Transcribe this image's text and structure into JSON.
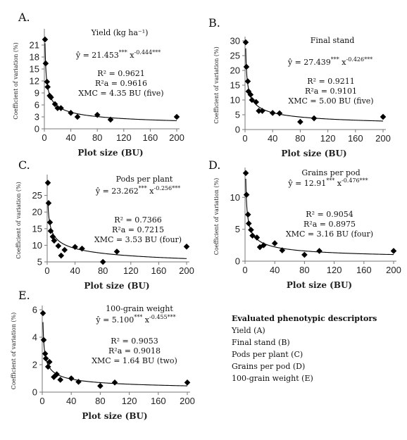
{
  "legend": {
    "title": "Evaluated phenotypic descriptors",
    "items": [
      "Yield (A)",
      "Final stand (B)",
      "Pods per plant (C)",
      "Grains per pod (D)",
      "100-grain weight (E)"
    ]
  },
  "chart_data": [
    {
      "type": "scatter",
      "panel": "A.",
      "title": "Yield (kg ha⁻¹)",
      "equation": "ŷ = 21.453*** x⁻⁰·⁴⁴⁴***",
      "eq_coef": "21.453",
      "eq_coef_sup": "***",
      "eq_exp": "-0.444***",
      "r2": "R² = 0.9621",
      "r2a": "R²a = 0.9616",
      "xmc": "XMC = 4.35 BU (five)",
      "xlabel": "Plot size (BU)",
      "ylabel": "Coefficient of variation (%)",
      "xlim": [
        0,
        200
      ],
      "ylim": [
        0,
        24
      ],
      "xticks": [
        0,
        40,
        80,
        120,
        160,
        200
      ],
      "yticks": [
        0,
        3,
        6,
        9,
        12,
        15,
        18,
        21
      ],
      "fit": {
        "a": 21.453,
        "b": -0.444
      },
      "x": [
        1,
        2,
        4,
        5,
        8,
        10,
        16,
        20,
        25,
        40,
        50,
        80,
        100,
        200
      ],
      "y": [
        22.4,
        16.4,
        11.8,
        10.5,
        8.3,
        7.9,
        6.2,
        5.2,
        5.2,
        4.0,
        3.0,
        3.5,
        2.3,
        3.0
      ]
    },
    {
      "type": "scatter",
      "panel": "B.",
      "title": "Final stand",
      "eq_coef": "27.439",
      "eq_coef_sup": "***",
      "eq_exp": "-0.426***",
      "r2": "R² = 0.9211",
      "r2a": "R²a = 0.9101",
      "xmc": "XMC = 5.00 BU (five)",
      "xlabel": "Plot size (BU)",
      "ylabel": "Coefficient of variation (%)",
      "xlim": [
        0,
        200
      ],
      "ylim": [
        0,
        30
      ],
      "xticks": [
        0,
        40,
        80,
        120,
        160,
        200
      ],
      "yticks": [
        0,
        5,
        10,
        15,
        20,
        25,
        30
      ],
      "fit": {
        "a": 27.439,
        "b": -0.426
      },
      "x": [
        1,
        2,
        4,
        5,
        8,
        10,
        16,
        20,
        25,
        40,
        50,
        80,
        100,
        200
      ],
      "y": [
        29.5,
        21.2,
        16.3,
        12.9,
        11.8,
        10.0,
        9.3,
        6.3,
        6.3,
        5.6,
        5.5,
        2.6,
        3.8,
        4.3
      ]
    },
    {
      "type": "scatter",
      "panel": "C.",
      "title": "Pods per plant",
      "eq_coef": "23.262",
      "eq_coef_sup": "***",
      "eq_exp": "-0.256***",
      "r2": "R² = 0.7366",
      "r2a": "R²a = 0.7215",
      "xmc": "XMC = 3.53 BU (four)",
      "xlabel": "Plot size (BU)",
      "ylabel": "Coefficient of variation (%)",
      "xlim": [
        0,
        200
      ],
      "ylim": [
        5,
        30
      ],
      "xticks": [
        0,
        40,
        80,
        120,
        160,
        200
      ],
      "yticks": [
        5,
        10,
        15,
        20,
        25
      ],
      "fit": {
        "a": 23.262,
        "b": -0.256
      },
      "x": [
        1,
        2,
        4,
        5,
        8,
        10,
        16,
        20,
        25,
        40,
        50,
        80,
        100,
        200
      ],
      "y": [
        28.8,
        22.7,
        16.9,
        14.3,
        12.6,
        11.4,
        9.8,
        6.9,
        8.6,
        9.5,
        9.0,
        5.0,
        8.1,
        9.6
      ]
    },
    {
      "type": "scatter",
      "panel": "D.",
      "title": "Grains per pod",
      "eq_coef": "12.91",
      "eq_coef_sup": "***",
      "eq_exp": "-0.476***",
      "r2": "R² = 0.9054",
      "r2a": "R²a = 0.8975",
      "xmc": "XMC = 3.16 BU (four)",
      "xlabel": "Plot size (BU)",
      "ylabel": "Coefficient of variation (%)",
      "xlim": [
        0,
        200
      ],
      "ylim": [
        0,
        14
      ],
      "xticks": [
        0,
        40,
        80,
        120,
        160,
        200
      ],
      "yticks": [
        0,
        5,
        10
      ],
      "fit": {
        "a": 12.91,
        "b": -0.476
      },
      "x": [
        1,
        2,
        4,
        5,
        8,
        10,
        16,
        20,
        25,
        40,
        50,
        80,
        100,
        200
      ],
      "y": [
        13.8,
        10.4,
        7.3,
        5.9,
        4.9,
        4.0,
        3.7,
        2.2,
        2.5,
        2.8,
        1.7,
        1.0,
        1.6,
        1.6
      ]
    },
    {
      "type": "scatter",
      "panel": "E.",
      "title": "100-grain weight",
      "eq_coef": "5.100",
      "eq_coef_sup": "***",
      "eq_exp": "-0.455***",
      "r2": "R² = 0.9053",
      "r2a": "R²a = 0.9018",
      "xmc": "XMC = 1.64 BU (two)",
      "xlabel": "Plot size (BU)",
      "ylabel": "Coefficient of variation (%)",
      "xlim": [
        0,
        200
      ],
      "ylim": [
        0,
        6
      ],
      "xticks": [
        0,
        40,
        80,
        120,
        160,
        200
      ],
      "yticks": [
        0,
        2,
        4,
        6
      ],
      "fit": {
        "a": 5.1,
        "b": -0.455
      },
      "x": [
        1,
        2,
        4,
        5,
        8,
        10,
        16,
        20,
        25,
        40,
        50,
        80,
        100,
        200
      ],
      "y": [
        5.75,
        3.8,
        2.8,
        2.45,
        1.85,
        2.2,
        1.1,
        1.3,
        0.9,
        1.0,
        0.75,
        0.45,
        0.7,
        0.7
      ]
    }
  ]
}
